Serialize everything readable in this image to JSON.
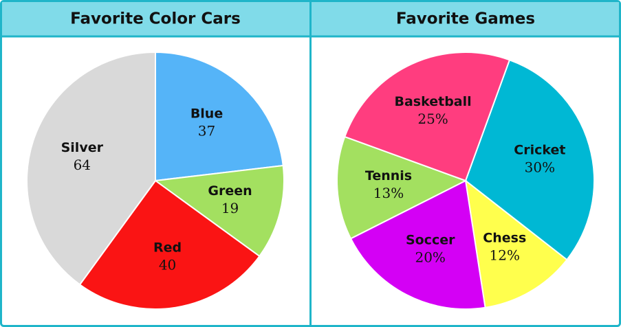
{
  "chart_data": [
    {
      "type": "pie",
      "title": "Favorite Color Cars",
      "categories": [
        "Blue",
        "Green",
        "Red",
        "Silver"
      ],
      "values": [
        37,
        19,
        40,
        64
      ],
      "colors": [
        "#55b4f8",
        "#a3e060",
        "#fa1414",
        "#d9d9d9"
      ]
    },
    {
      "type": "pie",
      "title": "Favorite Games",
      "categories": [
        "Cricket",
        "Chess",
        "Soccer",
        "Tennis",
        "Basketball"
      ],
      "values": [
        30,
        12,
        20,
        13,
        25
      ],
      "value_labels": [
        "30%",
        "12%",
        "20%",
        "13%",
        "25%"
      ],
      "colors": [
        "#00b8d4",
        "#ffff4d",
        "#d400f5",
        "#a3e060",
        "#ff3d7f"
      ]
    }
  ]
}
